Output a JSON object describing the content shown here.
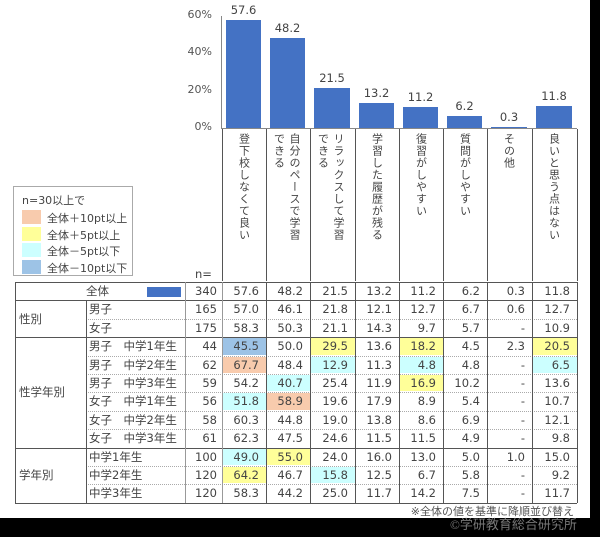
{
  "chart_data": {
    "type": "bar",
    "ylim": [
      0,
      60
    ],
    "yticks": [
      "0%",
      "20%",
      "40%",
      "60%"
    ],
    "categories": [
      "登下校しなくて良い",
      "自分のペースで学習できる",
      "リラックスして学習できる",
      "学習した履歴が残る",
      "復習がしやすい",
      "質問がしやすい",
      "その他",
      "良いと思う点はない"
    ],
    "values": [
      57.6,
      48.2,
      21.5,
      13.2,
      11.2,
      6.2,
      0.3,
      11.8
    ],
    "value_labels": [
      "57.6",
      "48.2",
      "21.5",
      "13.2",
      "11.2",
      "6.2",
      "0.3",
      "11.8"
    ],
    "bar_color": "#4472C4"
  },
  "legend": {
    "title": "n=30以上で",
    "items": [
      {
        "label": "全体＋10pt以上",
        "color": "#F8CBAD"
      },
      {
        "label": "全体＋5pt以上",
        "color": "#FFFF99"
      },
      {
        "label": "全体－5pt以下",
        "color": "#CCFFFF"
      },
      {
        "label": "全体－10pt以下",
        "color": "#9DC3E6"
      }
    ]
  },
  "table": {
    "n_label": "n=",
    "groups": [
      {
        "label": "",
        "rows": [
          {
            "label": "全体",
            "n": "340",
            "values": [
              "57.6",
              "48.2",
              "21.5",
              "13.2",
              "11.2",
              "6.2",
              "0.3",
              "11.8"
            ],
            "hl": [
              0,
              0,
              0,
              0,
              0,
              0,
              0,
              0
            ]
          }
        ]
      },
      {
        "label": "性別",
        "rows": [
          {
            "label": "男子",
            "n": "165",
            "values": [
              "57.0",
              "46.1",
              "21.8",
              "12.1",
              "12.7",
              "6.7",
              "0.6",
              "12.7"
            ],
            "hl": [
              0,
              0,
              0,
              0,
              0,
              0,
              0,
              0
            ]
          },
          {
            "label": "女子",
            "n": "175",
            "values": [
              "58.3",
              "50.3",
              "21.1",
              "14.3",
              "9.7",
              "5.7",
              "-",
              "10.9"
            ],
            "hl": [
              0,
              0,
              0,
              0,
              0,
              0,
              0,
              0
            ]
          }
        ]
      },
      {
        "label": "性学年別",
        "rows": [
          {
            "label": "男子　中学1年生",
            "n": "44",
            "values": [
              "45.5",
              "50.0",
              "29.5",
              "13.6",
              "18.2",
              "4.5",
              "2.3",
              "20.5"
            ],
            "hl": [
              4,
              0,
              2,
              0,
              2,
              0,
              0,
              2
            ]
          },
          {
            "label": "男子　中学2年生",
            "n": "62",
            "values": [
              "67.7",
              "48.4",
              "12.9",
              "11.3",
              "4.8",
              "4.8",
              "-",
              "6.5"
            ],
            "hl": [
              1,
              0,
              3,
              0,
              3,
              0,
              0,
              3
            ]
          },
          {
            "label": "男子　中学3年生",
            "n": "59",
            "values": [
              "54.2",
              "40.7",
              "25.4",
              "11.9",
              "16.9",
              "10.2",
              "-",
              "13.6"
            ],
            "hl": [
              0,
              3,
              0,
              0,
              2,
              0,
              0,
              0
            ]
          },
          {
            "label": "女子　中学1年生",
            "n": "56",
            "values": [
              "51.8",
              "58.9",
              "19.6",
              "17.9",
              "8.9",
              "5.4",
              "-",
              "10.7"
            ],
            "hl": [
              3,
              1,
              0,
              0,
              0,
              0,
              0,
              0
            ]
          },
          {
            "label": "女子　中学2年生",
            "n": "58",
            "values": [
              "60.3",
              "44.8",
              "19.0",
              "13.8",
              "8.6",
              "6.9",
              "-",
              "12.1"
            ],
            "hl": [
              0,
              0,
              0,
              0,
              0,
              0,
              0,
              0
            ]
          },
          {
            "label": "女子　中学3年生",
            "n": "61",
            "values": [
              "62.3",
              "47.5",
              "24.6",
              "11.5",
              "11.5",
              "4.9",
              "-",
              "9.8"
            ],
            "hl": [
              0,
              0,
              0,
              0,
              0,
              0,
              0,
              0
            ]
          }
        ]
      },
      {
        "label": "学年別",
        "rows": [
          {
            "label": "中学1年生",
            "n": "100",
            "values": [
              "49.0",
              "55.0",
              "24.0",
              "16.0",
              "13.0",
              "5.0",
              "1.0",
              "15.0"
            ],
            "hl": [
              3,
              2,
              0,
              0,
              0,
              0,
              0,
              0
            ]
          },
          {
            "label": "中学2年生",
            "n": "120",
            "values": [
              "64.2",
              "46.7",
              "15.8",
              "12.5",
              "6.7",
              "5.8",
              "-",
              "9.2"
            ],
            "hl": [
              2,
              0,
              3,
              0,
              0,
              0,
              0,
              0
            ]
          },
          {
            "label": "中学3年生",
            "n": "120",
            "values": [
              "58.3",
              "44.2",
              "25.0",
              "11.7",
              "14.2",
              "7.5",
              "-",
              "11.7"
            ],
            "hl": [
              0,
              0,
              0,
              0,
              0,
              0,
              0,
              0
            ]
          }
        ]
      }
    ]
  },
  "footnote": "※全体の値を基準に降順並び替え",
  "watermark": "©学研教育総合研究所"
}
